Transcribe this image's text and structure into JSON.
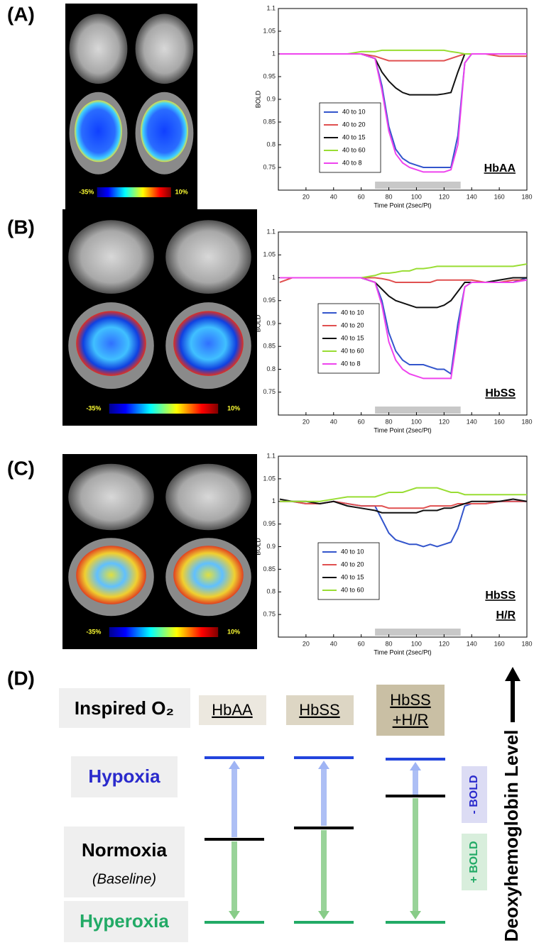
{
  "panels": [
    {
      "label": "(A)",
      "colorbar": [
        "-35%",
        "10%"
      ]
    },
    {
      "label": "(B)",
      "colorbar": [
        "-35%",
        "10%"
      ]
    },
    {
      "label": "(C)",
      "colorbar": [
        "-35%",
        "10%"
      ]
    }
  ],
  "chart_data": [
    {
      "type": "line",
      "ylabel": "BOLD",
      "xlabel": "Time Point (2sec/Pt)",
      "tag": [
        "HbAA"
      ],
      "xlim": [
        0,
        180
      ],
      "xticks": [
        20,
        40,
        60,
        80,
        100,
        120,
        140,
        160,
        180
      ],
      "ylim": [
        0.7,
        1.1
      ],
      "yticks": [
        0.75,
        0.8,
        0.85,
        0.9,
        0.95,
        1,
        1.05,
        1.1
      ],
      "shaded_range": [
        70,
        132
      ],
      "x": [
        1,
        10,
        20,
        30,
        40,
        50,
        60,
        70,
        75,
        80,
        85,
        90,
        95,
        100,
        105,
        110,
        115,
        120,
        125,
        130,
        135,
        140,
        150,
        160,
        170,
        180
      ],
      "series": [
        {
          "name": "40 to 10",
          "color": "#3355cc",
          "values": [
            1.0,
            1.0,
            1.0,
            1.0,
            1.0,
            1.0,
            1.0,
            0.99,
            0.93,
            0.84,
            0.79,
            0.77,
            0.76,
            0.755,
            0.75,
            0.75,
            0.75,
            0.75,
            0.75,
            0.82,
            0.98,
            1.0,
            1.0,
            1.0,
            1.0,
            1.0
          ]
        },
        {
          "name": "40 to 20",
          "color": "#e05050",
          "values": [
            1.0,
            1.0,
            1.0,
            1.0,
            1.0,
            1.0,
            1.0,
            0.995,
            0.99,
            0.985,
            0.985,
            0.985,
            0.985,
            0.985,
            0.985,
            0.985,
            0.985,
            0.985,
            0.99,
            0.995,
            1.0,
            1.0,
            1.0,
            0.995,
            0.995,
            0.995
          ]
        },
        {
          "name": "40 to 15",
          "color": "#111111",
          "values": [
            1.0,
            1.0,
            1.0,
            1.0,
            1.0,
            1.0,
            1.0,
            0.99,
            0.96,
            0.94,
            0.925,
            0.915,
            0.91,
            0.91,
            0.91,
            0.91,
            0.91,
            0.912,
            0.915,
            0.96,
            1.0,
            1.0,
            1.0,
            1.0,
            1.0,
            1.0
          ]
        },
        {
          "name": "40 to 60",
          "color": "#99dd33",
          "values": [
            1.0,
            1.0,
            1.0,
            1.0,
            1.0,
            1.0,
            1.005,
            1.005,
            1.008,
            1.008,
            1.008,
            1.008,
            1.008,
            1.008,
            1.008,
            1.008,
            1.008,
            1.008,
            1.005,
            1.003,
            1.0,
            1.0,
            1.0,
            1.0,
            1.0,
            1.0
          ]
        },
        {
          "name": "40 to 8",
          "color": "#ee44ee",
          "values": [
            1.0,
            1.0,
            1.0,
            1.0,
            1.0,
            1.0,
            1.0,
            0.99,
            0.92,
            0.83,
            0.78,
            0.76,
            0.75,
            0.745,
            0.74,
            0.74,
            0.74,
            0.74,
            0.745,
            0.8,
            0.98,
            1.0,
            1.0,
            1.0,
            1.0,
            1.0
          ]
        }
      ]
    },
    {
      "type": "line",
      "ylabel": "BOLD",
      "xlabel": "Time Point (2sec/Pt)",
      "tag": [
        "HbSS"
      ],
      "xlim": [
        0,
        180
      ],
      "xticks": [
        20,
        40,
        60,
        80,
        100,
        120,
        140,
        160,
        180
      ],
      "ylim": [
        0.7,
        1.1
      ],
      "yticks": [
        0.75,
        0.8,
        0.85,
        0.9,
        0.95,
        1,
        1.05,
        1.1
      ],
      "shaded_range": [
        70,
        132
      ],
      "x": [
        1,
        10,
        20,
        30,
        40,
        50,
        60,
        70,
        75,
        80,
        85,
        90,
        95,
        100,
        105,
        110,
        115,
        120,
        125,
        130,
        135,
        140,
        150,
        160,
        170,
        180
      ],
      "series": [
        {
          "name": "40 to 10",
          "color": "#3355cc",
          "values": [
            1.0,
            1.0,
            1.0,
            1.0,
            1.0,
            1.0,
            1.0,
            0.99,
            0.95,
            0.88,
            0.84,
            0.82,
            0.81,
            0.81,
            0.81,
            0.805,
            0.8,
            0.8,
            0.79,
            0.9,
            0.98,
            0.99,
            0.99,
            0.99,
            0.99,
            1.0
          ]
        },
        {
          "name": "40 to 20",
          "color": "#e05050",
          "values": [
            0.99,
            1.0,
            1.0,
            1.0,
            1.0,
            1.0,
            1.0,
            1.0,
            0.998,
            0.995,
            0.99,
            0.99,
            0.99,
            0.99,
            0.99,
            0.99,
            0.995,
            0.995,
            0.995,
            0.995,
            0.995,
            0.995,
            0.99,
            0.99,
            0.995,
            0.995
          ]
        },
        {
          "name": "40 to 15",
          "color": "#111111",
          "values": [
            1.0,
            1.0,
            1.0,
            1.0,
            1.0,
            1.0,
            1.0,
            0.99,
            0.975,
            0.96,
            0.95,
            0.945,
            0.94,
            0.935,
            0.935,
            0.935,
            0.935,
            0.94,
            0.95,
            0.97,
            0.99,
            0.99,
            0.99,
            0.995,
            1.0,
            1.0
          ]
        },
        {
          "name": "40 to 60",
          "color": "#99dd33",
          "values": [
            1.0,
            1.0,
            1.0,
            1.0,
            1.0,
            1.0,
            1.0,
            1.005,
            1.01,
            1.01,
            1.012,
            1.015,
            1.015,
            1.02,
            1.02,
            1.022,
            1.025,
            1.025,
            1.025,
            1.025,
            1.025,
            1.025,
            1.025,
            1.025,
            1.025,
            1.03
          ]
        },
        {
          "name": "40 to 8",
          "color": "#ee44ee",
          "values": [
            1.0,
            1.0,
            1.0,
            1.0,
            1.0,
            1.0,
            1.0,
            0.99,
            0.94,
            0.86,
            0.82,
            0.8,
            0.79,
            0.785,
            0.78,
            0.78,
            0.78,
            0.78,
            0.78,
            0.88,
            0.98,
            0.99,
            0.99,
            0.99,
            0.99,
            0.995
          ]
        }
      ]
    },
    {
      "type": "line",
      "ylabel": "BOLD",
      "xlabel": "Time Point (2sec/Pt)",
      "tag": [
        "HbSS",
        "H/R"
      ],
      "xlim": [
        0,
        180
      ],
      "xticks": [
        20,
        40,
        60,
        80,
        100,
        120,
        140,
        160,
        180
      ],
      "ylim": [
        0.7,
        1.1
      ],
      "yticks": [
        0.75,
        0.8,
        0.85,
        0.9,
        0.95,
        1,
        1.05,
        1.1
      ],
      "shaded_range": [
        70,
        132
      ],
      "x": [
        1,
        10,
        20,
        30,
        40,
        50,
        60,
        70,
        75,
        80,
        85,
        90,
        95,
        100,
        105,
        110,
        115,
        120,
        125,
        130,
        135,
        140,
        150,
        160,
        170,
        180
      ],
      "series": [
        {
          "name": "40 to 10",
          "color": "#3355cc",
          "values": [
            1.0,
            1.0,
            0.995,
            0.995,
            1.0,
            0.995,
            0.99,
            0.99,
            0.96,
            0.93,
            0.915,
            0.91,
            0.905,
            0.905,
            0.9,
            0.905,
            0.9,
            0.905,
            0.91,
            0.94,
            0.99,
            0.995,
            0.995,
            1.0,
            1.0,
            1.0
          ]
        },
        {
          "name": "40 to 20",
          "color": "#e05050",
          "values": [
            1.0,
            1.0,
            0.995,
            0.995,
            1.0,
            0.995,
            0.99,
            0.99,
            0.99,
            0.985,
            0.985,
            0.985,
            0.985,
            0.985,
            0.985,
            0.99,
            0.99,
            0.99,
            0.99,
            0.995,
            0.995,
            0.995,
            0.995,
            1.0,
            1.0,
            1.0
          ]
        },
        {
          "name": "40 to 15",
          "color": "#111111",
          "values": [
            1.005,
            1.0,
            1.0,
            0.995,
            1.0,
            0.99,
            0.985,
            0.98,
            0.975,
            0.975,
            0.975,
            0.975,
            0.975,
            0.975,
            0.98,
            0.98,
            0.98,
            0.985,
            0.985,
            0.99,
            0.995,
            1.0,
            1.0,
            1.0,
            1.005,
            1.0
          ]
        },
        {
          "name": "40 to 60",
          "color": "#99dd33",
          "values": [
            1.0,
            1.0,
            1.0,
            1.0,
            1.005,
            1.01,
            1.01,
            1.01,
            1.015,
            1.02,
            1.02,
            1.02,
            1.025,
            1.03,
            1.03,
            1.03,
            1.03,
            1.025,
            1.02,
            1.02,
            1.015,
            1.015,
            1.015,
            1.015,
            1.015,
            1.015
          ]
        }
      ]
    }
  ],
  "diagram": {
    "label": "(D)",
    "header": "Inspired O₂",
    "columns": [
      [
        "HbAA"
      ],
      [
        "HbSS"
      ],
      [
        "HbSS",
        "+H/R"
      ]
    ],
    "rows": {
      "hypoxia": "Hypoxia",
      "normoxia": "Normoxia",
      "baseline": "(Baseline)",
      "hyperoxia": "Hyperoxia"
    },
    "minus_bold": "- BOLD",
    "plus_bold": "+ BOLD",
    "axis": "Deoxyhemoglobin Level"
  }
}
